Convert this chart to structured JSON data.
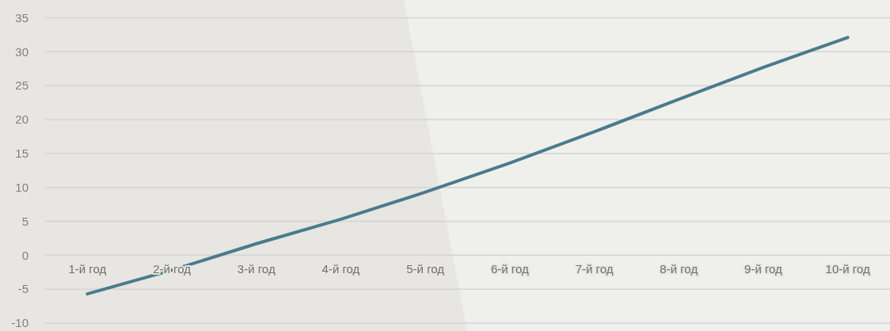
{
  "chart_data": {
    "type": "line",
    "categories": [
      "1-й год",
      "2-й год",
      "3-й год",
      "4-й год",
      "5-й год",
      "6-й год",
      "7-й год",
      "8-й год",
      "9-й год",
      "10-й год"
    ],
    "series": [
      {
        "color": "#4a7b8c",
        "values": [
          -5.7,
          -2.2,
          1.7,
          5.3,
          9.3,
          13.6,
          18.2,
          23.0,
          27.7,
          32.1
        ]
      }
    ],
    "ylim": [
      -10,
      35
    ],
    "yticks": [
      -10,
      -5,
      0,
      5,
      10,
      15,
      20,
      25,
      30,
      35
    ],
    "grid": "y",
    "marker": "none",
    "line_style": "solid"
  }
}
